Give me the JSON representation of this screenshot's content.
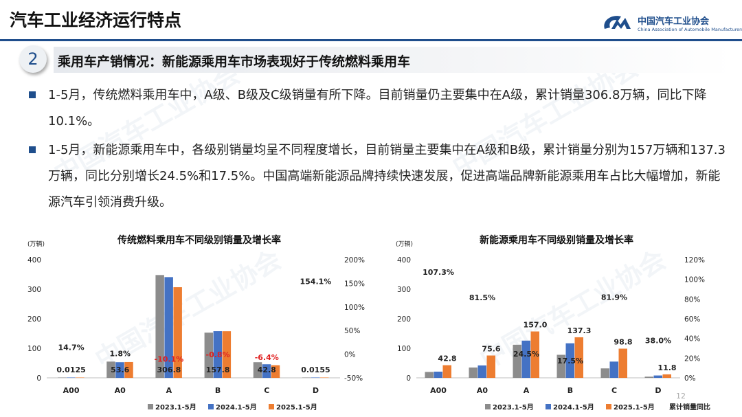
{
  "header": {
    "title": "汽车工业经济运行特点",
    "logo_cn": "中国汽车工业协会",
    "logo_en": "China Association of Automobile Manufacturers"
  },
  "section": {
    "number": "2",
    "title": "乘用车产销情况：新能源乘用车市场表现好于传统燃料乘用车"
  },
  "bullets": [
    "1-5月，传统燃料乘用车中，A级、B级及C级销量有所下降。目前销量仍主要集中在A级，累计销量306.8万辆，同比下降10.1%。",
    "1-5月，新能源乘用车中，各级别销量均呈不同程度增长，目前销量主要集中在A级和B级，累计销量分别为157万辆和137.3万辆，同比分别增长24.5%和17.5%。中国高端新能源品牌持续快速发展，促进高端品牌新能源乘用车占比大幅增加，新能源汽车引领消费升级。"
  ],
  "page_number": "12",
  "watermark": "中国汽车工业协会",
  "chart_data": [
    {
      "type": "bar",
      "title": "传统燃料乘用车不同级别销量及增长率",
      "ylabel": "(万辆)",
      "categories": [
        "A00",
        "A0",
        "A",
        "B",
        "C",
        "D"
      ],
      "ylim": [
        0,
        400
      ],
      "yticks": [
        "0",
        "100",
        "200",
        "300",
        "400"
      ],
      "y2lim": [
        -50,
        200
      ],
      "y2ticks": [
        "-50%",
        "0%",
        "50%",
        "100%",
        "150%",
        "200%"
      ],
      "series": [
        {
          "name": "2023.1-5月",
          "color": "#8c8c8c",
          "values": [
            0.02,
            55,
            348,
            153,
            53,
            0.01
          ]
        },
        {
          "name": "2024.1-5月",
          "color": "#4472c4",
          "values": [
            0.01,
            53,
            341,
            158,
            46,
            0.01
          ]
        },
        {
          "name": "2025.1-5月",
          "color": "#ed7d31",
          "values": [
            0.0125,
            53.6,
            306.8,
            157.8,
            42.8,
            0.0155
          ]
        }
      ],
      "growth": {
        "name": "累计销量同比",
        "values": [
          14.7,
          1.8,
          -10.1,
          -0.8,
          -6.4,
          154.1
        ],
        "labels": [
          "14.7%",
          "1.8%",
          "-10.1%",
          "-0.8%",
          "-6.4%",
          "154.1%"
        ]
      },
      "value_labels": [
        "0.0125",
        "53.6",
        "306.8",
        "157.8",
        "42.8",
        "0.0155"
      ]
    },
    {
      "type": "bar",
      "title": "新能源乘用车不同级别销量及增长率",
      "ylabel": "(万辆)",
      "categories": [
        "A00",
        "A0",
        "A",
        "B",
        "C",
        "D"
      ],
      "ylim": [
        0,
        400
      ],
      "yticks": [
        "0",
        "100",
        "200",
        "300",
        "400"
      ],
      "y2lim": [
        0,
        120
      ],
      "y2ticks": [
        "0%",
        "20%",
        "40%",
        "60%",
        "80%",
        "100%",
        "120%"
      ],
      "series": [
        {
          "name": "2023.1-5月",
          "color": "#8c8c8c",
          "values": [
            20,
            35,
            112,
            78,
            32,
            4
          ]
        },
        {
          "name": "2024.1-5月",
          "color": "#4472c4",
          "values": [
            21,
            42,
            126,
            117,
            55,
            8
          ]
        },
        {
          "name": "2025.1-5月",
          "color": "#ed7d31",
          "values": [
            42.8,
            75.6,
            157.0,
            137.3,
            98.8,
            11.8
          ]
        }
      ],
      "growth": {
        "name": "累计销量同比",
        "values": [
          107.3,
          81.5,
          24.5,
          17.5,
          81.9,
          38.0
        ],
        "labels": [
          "107.3%",
          "81.5%",
          "24.5%",
          "17.5%",
          "81.9%",
          "38.0%"
        ]
      },
      "value_labels": [
        "42.8",
        "75.6",
        "157.0",
        "137.3",
        "98.8",
        "11.8"
      ]
    }
  ]
}
